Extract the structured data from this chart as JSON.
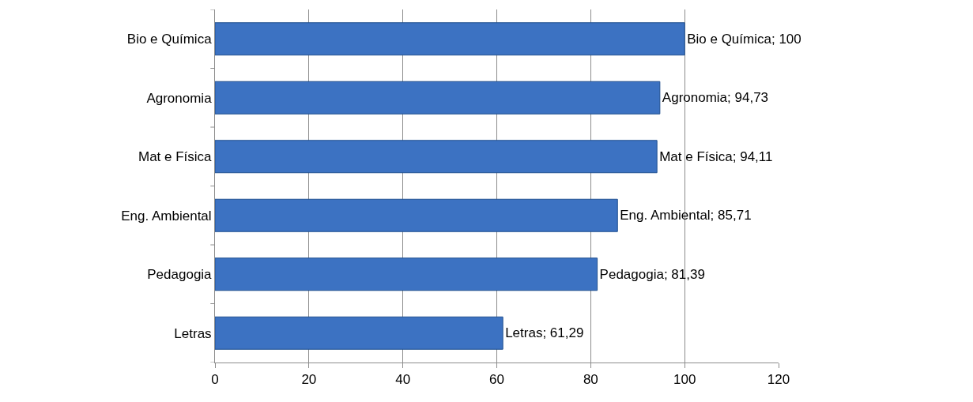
{
  "chart_data": {
    "type": "bar",
    "orientation": "horizontal",
    "categories": [
      "Bio e Química",
      "Agronomia",
      "Mat e Física",
      "Eng. Ambiental",
      "Pedagogia",
      "Letras"
    ],
    "values": [
      100,
      94.73,
      94.11,
      85.71,
      81.39,
      61.29
    ],
    "value_labels": [
      "Bio e Química; 100",
      "Agronomia; 94,73",
      "Mat e Física; 94,11",
      "Eng. Ambiental; 85,71",
      "Pedagogia; 81,39",
      "Letras; 61,29"
    ],
    "color": "#3c72c2",
    "xlim": [
      0,
      120
    ],
    "xticks": [
      0,
      20,
      40,
      60,
      80,
      100,
      120
    ],
    "grid": "x",
    "legend": false
  }
}
